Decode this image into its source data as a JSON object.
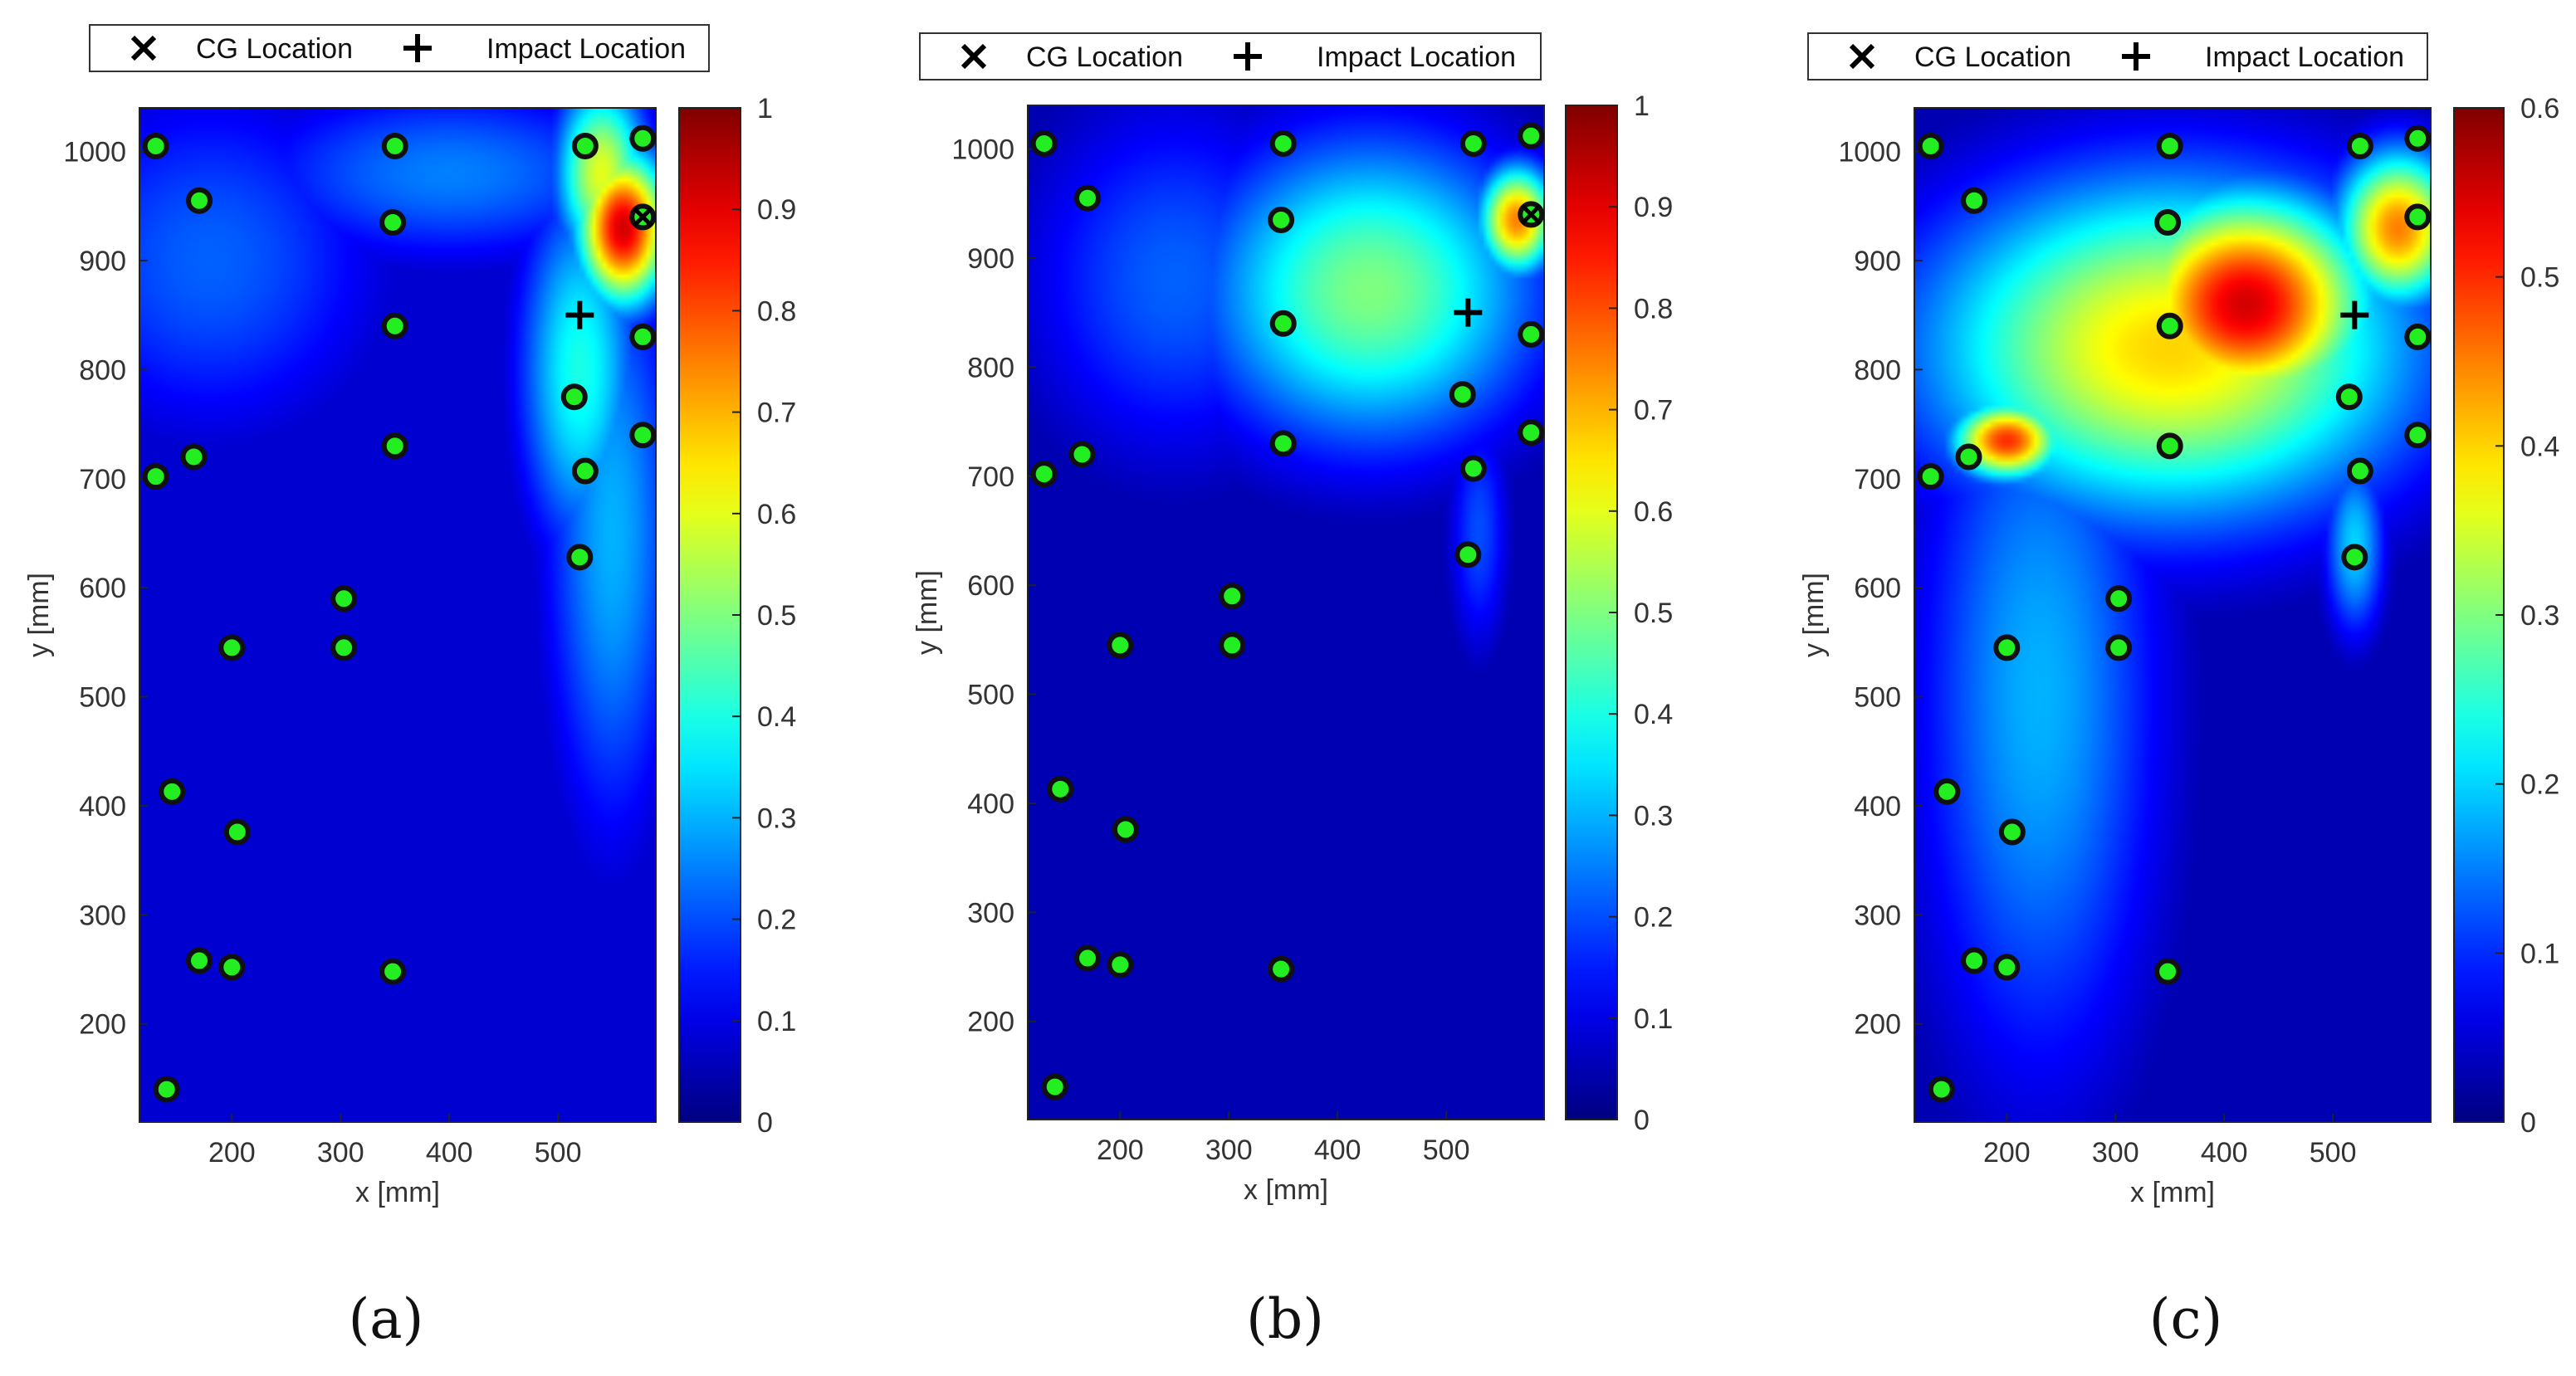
{
  "legend": {
    "cg_label": "CG Location",
    "impact_label": "Impact Location"
  },
  "panel_labels": [
    "(a)",
    "(b)",
    "(c)"
  ],
  "chart_data": [
    {
      "type": "heatmap",
      "panel": "(a)",
      "xlabel": "x [mm]",
      "ylabel": "y [mm]",
      "xlim": [
        115,
        590
      ],
      "ylim": [
        110,
        1040
      ],
      "xticks": [
        200,
        300,
        400,
        500
      ],
      "yticks": [
        200,
        300,
        400,
        500,
        600,
        700,
        800,
        900,
        1000
      ],
      "colorbar": {
        "range": [
          0,
          1
        ],
        "ticks": [
          0,
          0.1,
          0.2,
          0.3,
          0.4,
          0.5,
          0.6,
          0.7,
          0.8,
          0.9,
          1
        ],
        "tick_labels": [
          "0",
          "0.1",
          "0.2",
          "0.3",
          "0.4",
          "0.5",
          "0.6",
          "0.7",
          "0.8",
          "0.9",
          "1"
        ]
      },
      "cg_location": {
        "x": 578,
        "y": 940
      },
      "impact_location": {
        "x": 520,
        "y": 850
      },
      "background_value": 0.08,
      "hotspots": [
        {
          "x": 560,
          "y": 930,
          "value": 0.92,
          "sx": 30,
          "sy": 50
        },
        {
          "x": 540,
          "y": 980,
          "value": 0.6,
          "sx": 30,
          "sy": 60
        },
        {
          "x": 520,
          "y": 800,
          "value": 0.4,
          "sx": 40,
          "sy": 120
        },
        {
          "x": 550,
          "y": 650,
          "value": 0.3,
          "sx": 45,
          "sy": 200
        },
        {
          "x": 180,
          "y": 900,
          "value": 0.22,
          "sx": 120,
          "sy": 120
        },
        {
          "x": 400,
          "y": 980,
          "value": 0.25,
          "sx": 140,
          "sy": 60
        }
      ],
      "sensors": [
        {
          "x": 130,
          "y": 1005
        },
        {
          "x": 350,
          "y": 1005
        },
        {
          "x": 525,
          "y": 1005
        },
        {
          "x": 578,
          "y": 1012
        },
        {
          "x": 170,
          "y": 955
        },
        {
          "x": 348,
          "y": 935
        },
        {
          "x": 578,
          "y": 940
        },
        {
          "x": 350,
          "y": 840
        },
        {
          "x": 578,
          "y": 830
        },
        {
          "x": 515,
          "y": 775
        },
        {
          "x": 130,
          "y": 702
        },
        {
          "x": 165,
          "y": 720
        },
        {
          "x": 350,
          "y": 730
        },
        {
          "x": 525,
          "y": 707
        },
        {
          "x": 578,
          "y": 740
        },
        {
          "x": 520,
          "y": 628
        },
        {
          "x": 303,
          "y": 590
        },
        {
          "x": 200,
          "y": 545
        },
        {
          "x": 303,
          "y": 545
        },
        {
          "x": 145,
          "y": 413
        },
        {
          "x": 205,
          "y": 376
        },
        {
          "x": 170,
          "y": 258
        },
        {
          "x": 200,
          "y": 252
        },
        {
          "x": 348,
          "y": 248
        },
        {
          "x": 140,
          "y": 140
        }
      ]
    },
    {
      "type": "heatmap",
      "panel": "(b)",
      "xlabel": "x [mm]",
      "ylabel": "y [mm]",
      "xlim": [
        115,
        590
      ],
      "ylim": [
        110,
        1040
      ],
      "xticks": [
        200,
        300,
        400,
        500
      ],
      "yticks": [
        200,
        300,
        400,
        500,
        600,
        700,
        800,
        900,
        1000
      ],
      "colorbar": {
        "range": [
          0,
          1
        ],
        "ticks": [
          0,
          0.1,
          0.2,
          0.3,
          0.4,
          0.5,
          0.6,
          0.7,
          0.8,
          0.9,
          1
        ],
        "tick_labels": [
          "0",
          "0.1",
          "0.2",
          "0.3",
          "0.4",
          "0.5",
          "0.6",
          "0.7",
          "0.8",
          "0.9",
          "1"
        ]
      },
      "cg_location": {
        "x": 578,
        "y": 940
      },
      "impact_location": {
        "x": 520,
        "y": 850
      },
      "background_value": 0.05,
      "hotspots": [
        {
          "x": 430,
          "y": 870,
          "value": 0.5,
          "sx": 110,
          "sy": 100
        },
        {
          "x": 565,
          "y": 935,
          "value": 0.75,
          "sx": 25,
          "sy": 35
        },
        {
          "x": 250,
          "y": 880,
          "value": 0.22,
          "sx": 100,
          "sy": 120
        },
        {
          "x": 530,
          "y": 650,
          "value": 0.2,
          "sx": 20,
          "sy": 80
        }
      ],
      "sensors": [
        {
          "x": 130,
          "y": 1005
        },
        {
          "x": 350,
          "y": 1005
        },
        {
          "x": 525,
          "y": 1005
        },
        {
          "x": 578,
          "y": 1012
        },
        {
          "x": 170,
          "y": 955
        },
        {
          "x": 348,
          "y": 935
        },
        {
          "x": 578,
          "y": 940
        },
        {
          "x": 350,
          "y": 840
        },
        {
          "x": 578,
          "y": 830
        },
        {
          "x": 515,
          "y": 775
        },
        {
          "x": 130,
          "y": 702
        },
        {
          "x": 165,
          "y": 720
        },
        {
          "x": 350,
          "y": 730
        },
        {
          "x": 525,
          "y": 707
        },
        {
          "x": 578,
          "y": 740
        },
        {
          "x": 520,
          "y": 628
        },
        {
          "x": 303,
          "y": 590
        },
        {
          "x": 200,
          "y": 545
        },
        {
          "x": 303,
          "y": 545
        },
        {
          "x": 145,
          "y": 413
        },
        {
          "x": 205,
          "y": 376
        },
        {
          "x": 170,
          "y": 258
        },
        {
          "x": 200,
          "y": 252
        },
        {
          "x": 348,
          "y": 248
        },
        {
          "x": 140,
          "y": 140
        }
      ]
    },
    {
      "type": "heatmap",
      "panel": "(c)",
      "xlabel": "x [mm]",
      "ylabel": "y [mm]",
      "xlim": [
        115,
        590
      ],
      "ylim": [
        110,
        1040
      ],
      "xticks": [
        200,
        300,
        400,
        500
      ],
      "yticks": [
        200,
        300,
        400,
        500,
        600,
        700,
        800,
        900,
        1000
      ],
      "colorbar": {
        "range": [
          0,
          0.6
        ],
        "ticks": [
          0,
          0.1,
          0.2,
          0.3,
          0.4,
          0.5,
          0.6
        ],
        "tick_labels": [
          "0",
          "0.1",
          "0.2",
          "0.3",
          "0.4",
          "0.5",
          "0.6"
        ]
      },
      "cg_location": null,
      "impact_location": {
        "x": 520,
        "y": 850
      },
      "background_value": 0.03,
      "hotspots": [
        {
          "x": 420,
          "y": 860,
          "value": 0.55,
          "sx": 80,
          "sy": 70
        },
        {
          "x": 350,
          "y": 820,
          "value": 0.4,
          "sx": 160,
          "sy": 110
        },
        {
          "x": 200,
          "y": 735,
          "value": 0.5,
          "sx": 35,
          "sy": 25
        },
        {
          "x": 560,
          "y": 930,
          "value": 0.45,
          "sx": 40,
          "sy": 50
        },
        {
          "x": 230,
          "y": 500,
          "value": 0.18,
          "sx": 80,
          "sy": 250
        },
        {
          "x": 520,
          "y": 640,
          "value": 0.2,
          "sx": 20,
          "sy": 60
        }
      ],
      "sensors": [
        {
          "x": 130,
          "y": 1005
        },
        {
          "x": 350,
          "y": 1005
        },
        {
          "x": 525,
          "y": 1005
        },
        {
          "x": 578,
          "y": 1012
        },
        {
          "x": 170,
          "y": 955
        },
        {
          "x": 348,
          "y": 935
        },
        {
          "x": 578,
          "y": 940
        },
        {
          "x": 350,
          "y": 840
        },
        {
          "x": 578,
          "y": 830
        },
        {
          "x": 515,
          "y": 775
        },
        {
          "x": 130,
          "y": 702
        },
        {
          "x": 165,
          "y": 720
        },
        {
          "x": 350,
          "y": 730
        },
        {
          "x": 525,
          "y": 707
        },
        {
          "x": 578,
          "y": 740
        },
        {
          "x": 520,
          "y": 628
        },
        {
          "x": 303,
          "y": 590
        },
        {
          "x": 200,
          "y": 545
        },
        {
          "x": 303,
          "y": 545
        },
        {
          "x": 145,
          "y": 413
        },
        {
          "x": 205,
          "y": 376
        },
        {
          "x": 170,
          "y": 258
        },
        {
          "x": 200,
          "y": 252
        },
        {
          "x": 348,
          "y": 248
        },
        {
          "x": 140,
          "y": 140
        }
      ]
    }
  ],
  "colors": {
    "sensor_fill": "#22ee22",
    "sensor_stroke": "#111111",
    "marker": "#000000"
  }
}
